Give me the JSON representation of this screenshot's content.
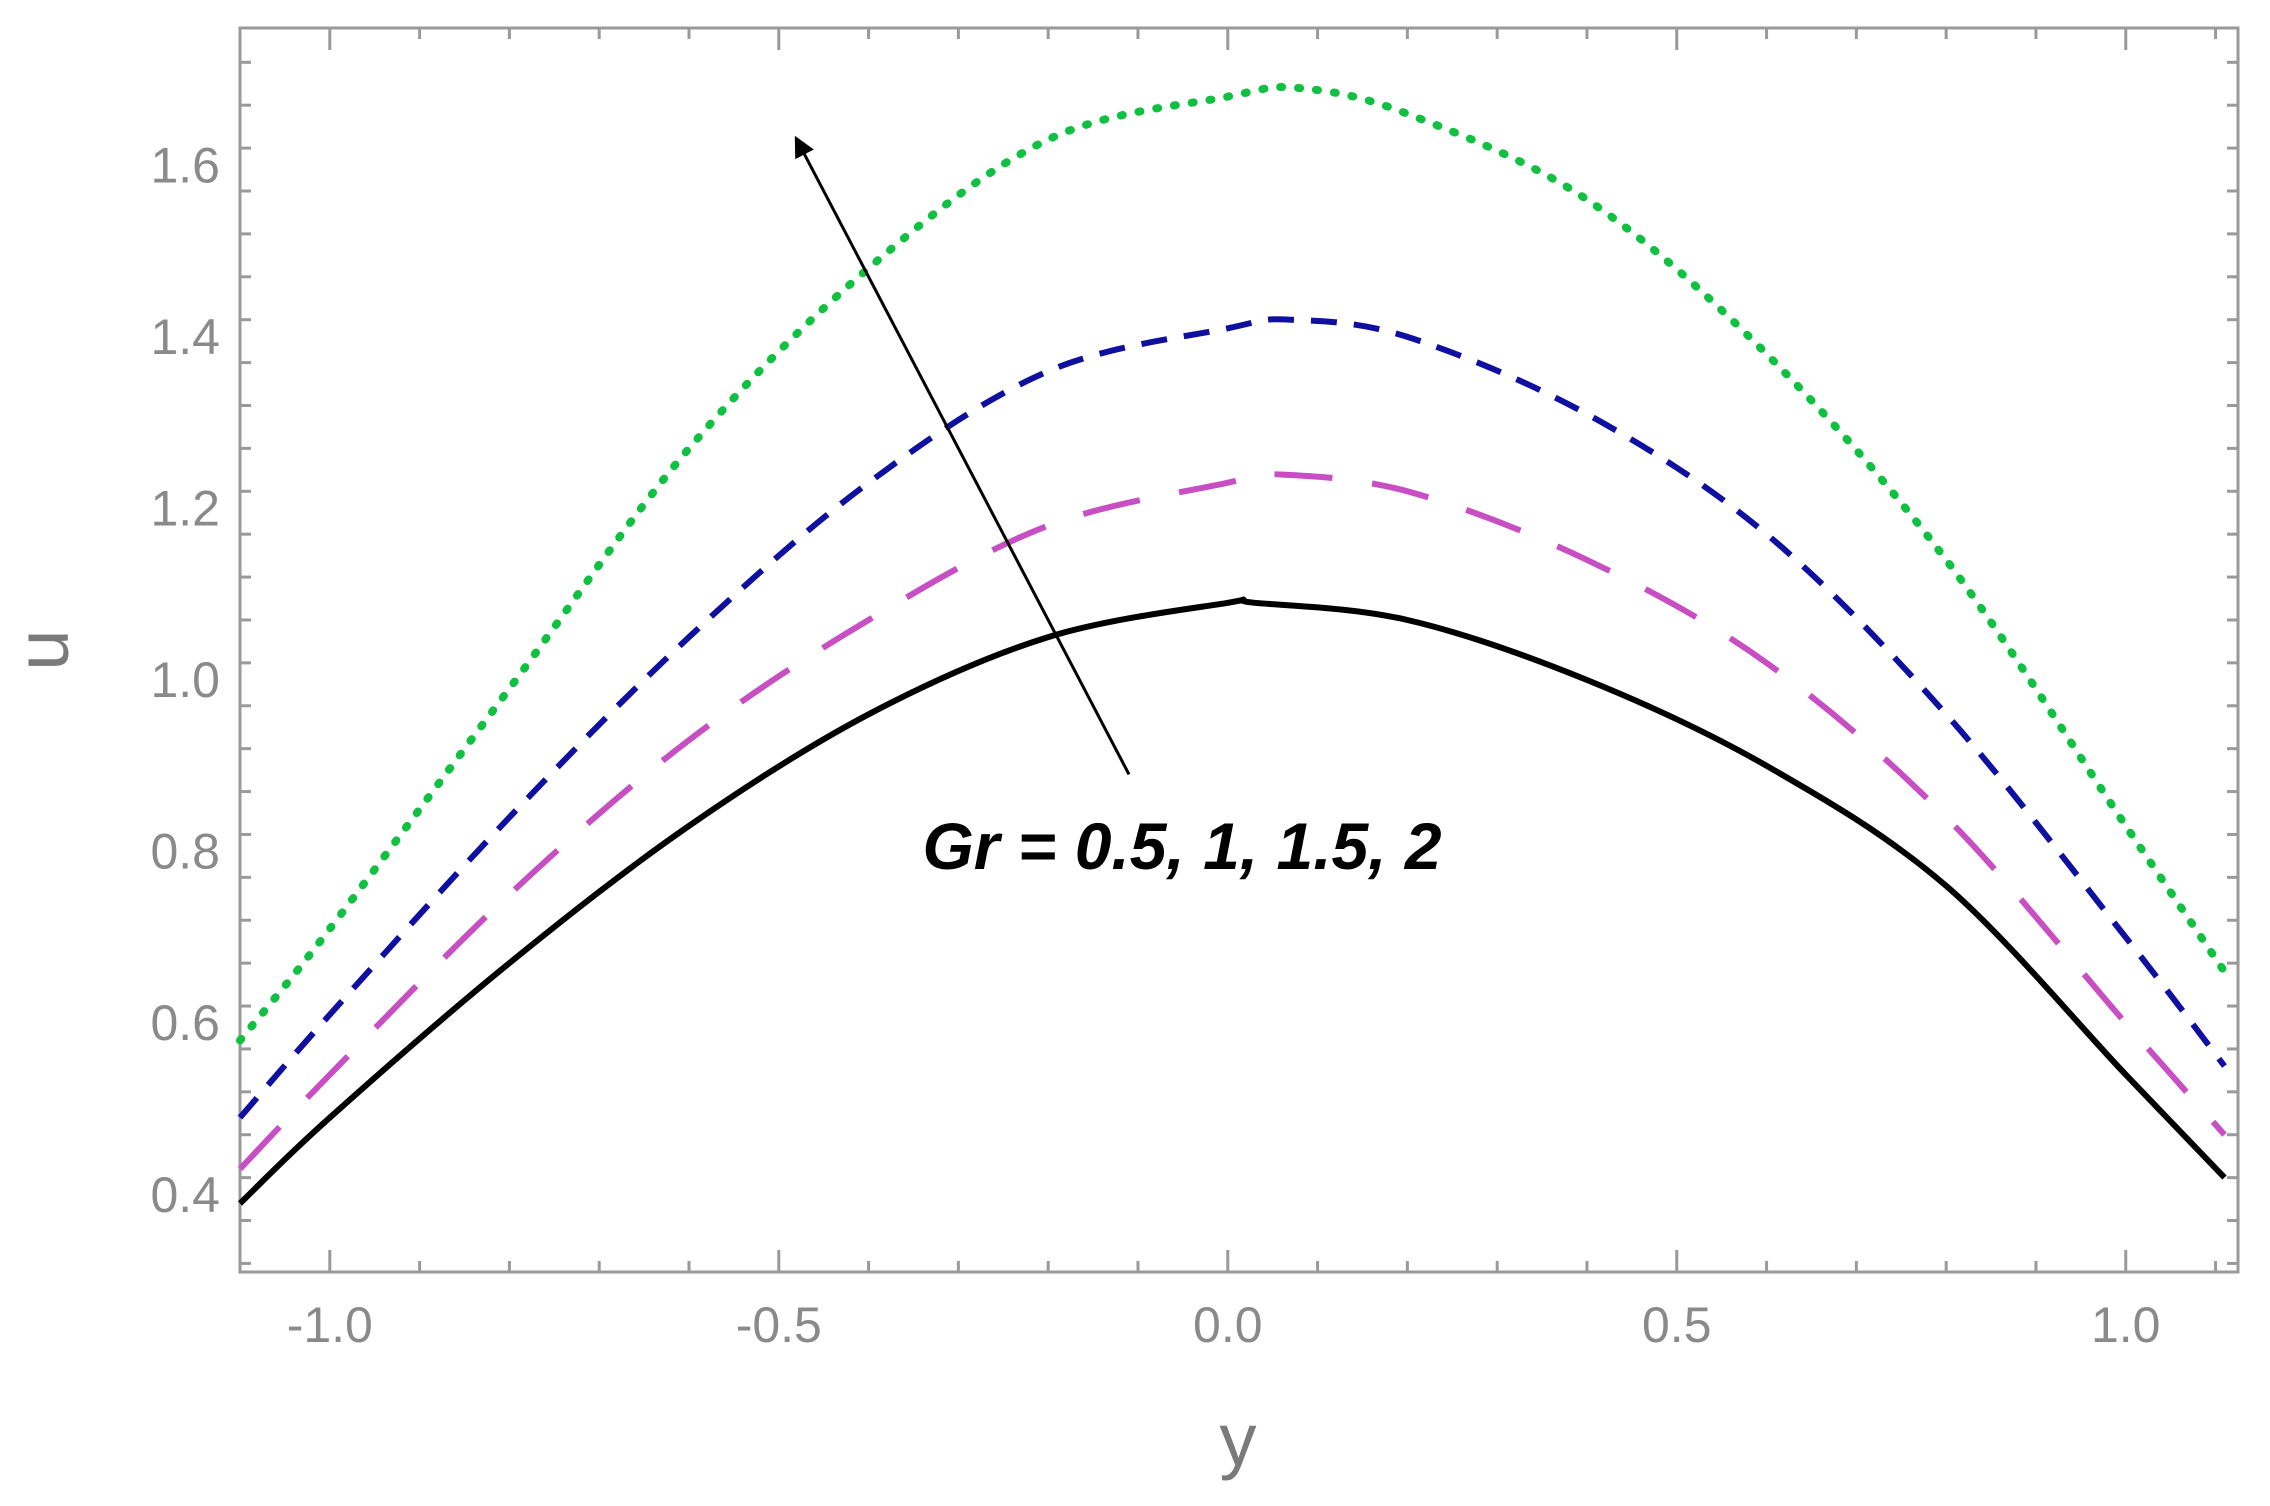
{
  "chart_data": {
    "type": "line",
    "title": "",
    "xlabel": "y",
    "ylabel": "u",
    "xlim": [
      -1.1,
      1.125
    ],
    "ylim": [
      0.31,
      1.76
    ],
    "x_ticks": [
      -1.0,
      -0.5,
      0.0,
      0.5,
      1.0
    ],
    "x_tick_labels": [
      "-1.0",
      "-0.5",
      "0.0",
      "0.5",
      "1.0"
    ],
    "y_ticks": [
      0.4,
      0.6,
      0.8,
      1.0,
      1.2,
      1.4,
      1.6
    ],
    "y_tick_labels": [
      "0.4",
      "0.6",
      "0.8",
      "1.0",
      "1.2",
      "1.4",
      "1.6"
    ],
    "grid": false,
    "legend": "none",
    "annotation": {
      "text": "Gr = 0.5, 1, 1.5, 2",
      "arrow_from": [
        -0.11,
        0.89
      ],
      "arrow_to": [
        -0.48,
        1.63
      ]
    },
    "series": [
      {
        "style": "solid",
        "color": "#000000",
        "x": [
          -1.1,
          -1.0,
          -0.8,
          -0.6,
          -0.4,
          -0.2,
          0.0,
          0.03,
          0.2,
          0.4,
          0.6,
          0.8,
          1.0,
          1.11
        ],
        "y": [
          0.39,
          0.49,
          0.67,
          0.83,
          0.96,
          1.05,
          1.09,
          1.09,
          1.07,
          1.0,
          0.9,
          0.76,
          0.54,
          0.42
        ]
      },
      {
        "style": "long-dash",
        "color": "#c84fc3",
        "x": [
          -1.1,
          -1.0,
          -0.8,
          -0.6,
          -0.4,
          -0.2,
          0.0,
          0.05,
          0.2,
          0.4,
          0.6,
          0.8,
          1.0,
          1.11
        ],
        "y": [
          0.43,
          0.54,
          0.75,
          0.93,
          1.07,
          1.18,
          1.23,
          1.24,
          1.22,
          1.14,
          1.02,
          0.84,
          0.6,
          0.47
        ]
      },
      {
        "style": "short-dash",
        "color": "#1010a0",
        "x": [
          -1.1,
          -1.0,
          -0.8,
          -0.6,
          -0.4,
          -0.2,
          0.0,
          0.07,
          0.2,
          0.4,
          0.6,
          0.8,
          1.0,
          1.11
        ],
        "y": [
          0.49,
          0.61,
          0.84,
          1.05,
          1.23,
          1.36,
          1.41,
          1.42,
          1.4,
          1.31,
          1.17,
          0.96,
          0.7,
          0.55
        ]
      },
      {
        "style": "dotted",
        "color": "#10c040",
        "x": [
          -1.1,
          -1.0,
          -0.8,
          -0.6,
          -0.4,
          -0.2,
          0.0,
          0.08,
          0.2,
          0.4,
          0.6,
          0.8,
          1.0,
          1.11
        ],
        "y": [
          0.58,
          0.71,
          0.99,
          1.27,
          1.48,
          1.63,
          1.68,
          1.69,
          1.66,
          1.56,
          1.38,
          1.14,
          0.83,
          0.66
        ]
      }
    ]
  }
}
